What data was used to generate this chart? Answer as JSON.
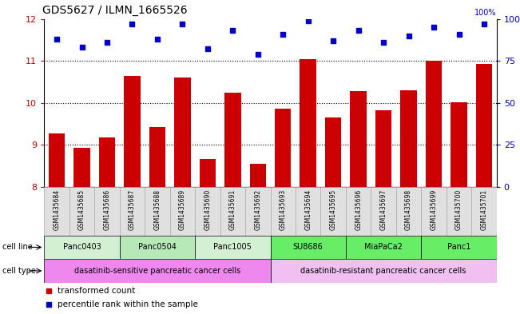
{
  "title": "GDS5627 / ILMN_1665526",
  "samples": [
    "GSM1435684",
    "GSM1435685",
    "GSM1435686",
    "GSM1435687",
    "GSM1435688",
    "GSM1435689",
    "GSM1435690",
    "GSM1435691",
    "GSM1435692",
    "GSM1435693",
    "GSM1435694",
    "GSM1435695",
    "GSM1435696",
    "GSM1435697",
    "GSM1435698",
    "GSM1435699",
    "GSM1435700",
    "GSM1435701"
  ],
  "bar_values": [
    9.27,
    8.93,
    9.17,
    10.65,
    9.42,
    10.6,
    8.67,
    10.25,
    8.55,
    9.87,
    11.05,
    9.65,
    10.28,
    9.82,
    10.3,
    11.0,
    10.02,
    10.93
  ],
  "percentile_values": [
    88,
    83,
    86,
    97,
    88,
    97,
    82,
    93,
    79,
    91,
    99,
    87,
    93,
    86,
    90,
    95,
    91,
    97
  ],
  "ylim_left": [
    8,
    12
  ],
  "ylim_right": [
    0,
    100
  ],
  "yticks_left": [
    8,
    9,
    10,
    11,
    12
  ],
  "yticks_right": [
    0,
    25,
    50,
    75,
    100
  ],
  "bar_color": "#CC0000",
  "dot_color": "#0000CC",
  "cell_lines": [
    {
      "name": "Panc0403",
      "start": 0,
      "end": 3,
      "color": "#d4f0d4"
    },
    {
      "name": "Panc0504",
      "start": 3,
      "end": 6,
      "color": "#b8e8b8"
    },
    {
      "name": "Panc1005",
      "start": 6,
      "end": 9,
      "color": "#d4f0d4"
    },
    {
      "name": "SU8686",
      "start": 9,
      "end": 12,
      "color": "#66ee66"
    },
    {
      "name": "MiaPaCa2",
      "start": 12,
      "end": 15,
      "color": "#66ee66"
    },
    {
      "name": "Panc1",
      "start": 15,
      "end": 18,
      "color": "#66ee66"
    }
  ],
  "cell_types": [
    {
      "name": "dasatinib-sensitive pancreatic cancer cells",
      "start": 0,
      "end": 9,
      "color": "#ee88ee"
    },
    {
      "name": "dasatinib-resistant pancreatic cancer cells",
      "start": 9,
      "end": 18,
      "color": "#f0c0f0"
    }
  ],
  "legend_bar_label": "transformed count",
  "legend_dot_label": "percentile rank within the sample",
  "tick_color_left": "#CC0000",
  "tick_color_right": "#0000CC",
  "grid_yticks": [
    9,
    10,
    11
  ],
  "label_fontsize": 7,
  "bar_width": 0.65
}
